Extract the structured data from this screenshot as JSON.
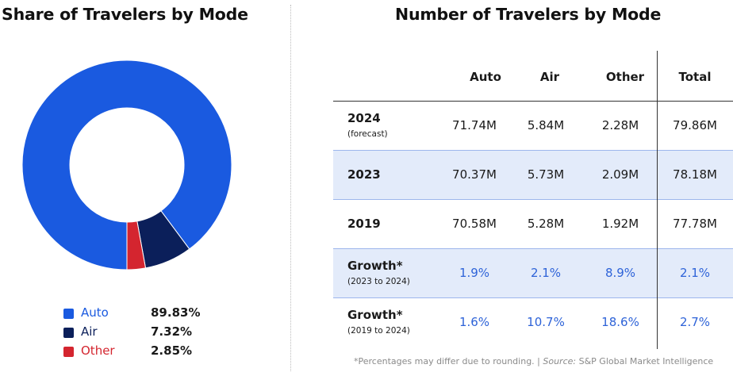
{
  "left_title": "Share of Travelers by Mode",
  "right_title": "Number of Travelers by Mode",
  "colors": {
    "auto": "#1a5ae0",
    "air": "#0b1f5a",
    "other": "#d4252f",
    "accent_blue": "#2e63d8",
    "row_shade": "#e3ebfa"
  },
  "legend": [
    {
      "label": "Auto",
      "value": "89.83%"
    },
    {
      "label": "Air",
      "value": "7.32%"
    },
    {
      "label": "Other",
      "value": "2.85%"
    }
  ],
  "table": {
    "headers": [
      "Auto",
      "Air",
      "Other",
      "Total"
    ],
    "rows": [
      {
        "label": "2024",
        "sublabel": "(forecast)",
        "cells": [
          "71.74M",
          "5.84M",
          "2.28M",
          "79.86M"
        ]
      },
      {
        "label": "2023",
        "sublabel": "",
        "cells": [
          "70.37M",
          "5.73M",
          "2.09M",
          "78.18M"
        ]
      },
      {
        "label": "2019",
        "sublabel": "",
        "cells": [
          "70.58M",
          "5.28M",
          "1.92M",
          "77.78M"
        ]
      },
      {
        "label": "Growth*",
        "sublabel": "(2023 to 2024)",
        "cells": [
          "1.9%",
          "2.1%",
          "8.9%",
          "2.1%"
        ]
      },
      {
        "label": "Growth*",
        "sublabel": "(2019 to 2024)",
        "cells": [
          "1.6%",
          "10.7%",
          "18.6%",
          "2.7%"
        ]
      }
    ]
  },
  "footnote": {
    "prefix": "*Percentages may differ due to rounding. | ",
    "source_label": "Source:",
    "source_text": " S&P Global Market Intelligence"
  },
  "chart_data": [
    {
      "type": "pie",
      "title": "Share of Travelers by Mode",
      "categories": [
        "Auto",
        "Air",
        "Other"
      ],
      "values": [
        89.83,
        7.32,
        2.85
      ],
      "legend": "bottom-left"
    },
    {
      "type": "table",
      "title": "Number of Travelers by Mode",
      "columns": [
        "Auto",
        "Air",
        "Other",
        "Total"
      ],
      "rows": [
        {
          "name": "2024 (forecast)",
          "values": [
            "71.74M",
            "5.84M",
            "2.28M",
            "79.86M"
          ]
        },
        {
          "name": "2023",
          "values": [
            "70.37M",
            "5.73M",
            "2.09M",
            "78.18M"
          ]
        },
        {
          "name": "2019",
          "values": [
            "70.58M",
            "5.28M",
            "1.92M",
            "77.78M"
          ]
        },
        {
          "name": "Growth* (2023 to 2024)",
          "values": [
            "1.9%",
            "2.1%",
            "8.9%",
            "2.1%"
          ]
        },
        {
          "name": "Growth* (2019 to 2024)",
          "values": [
            "1.6%",
            "10.7%",
            "18.6%",
            "2.7%"
          ]
        }
      ]
    }
  ]
}
